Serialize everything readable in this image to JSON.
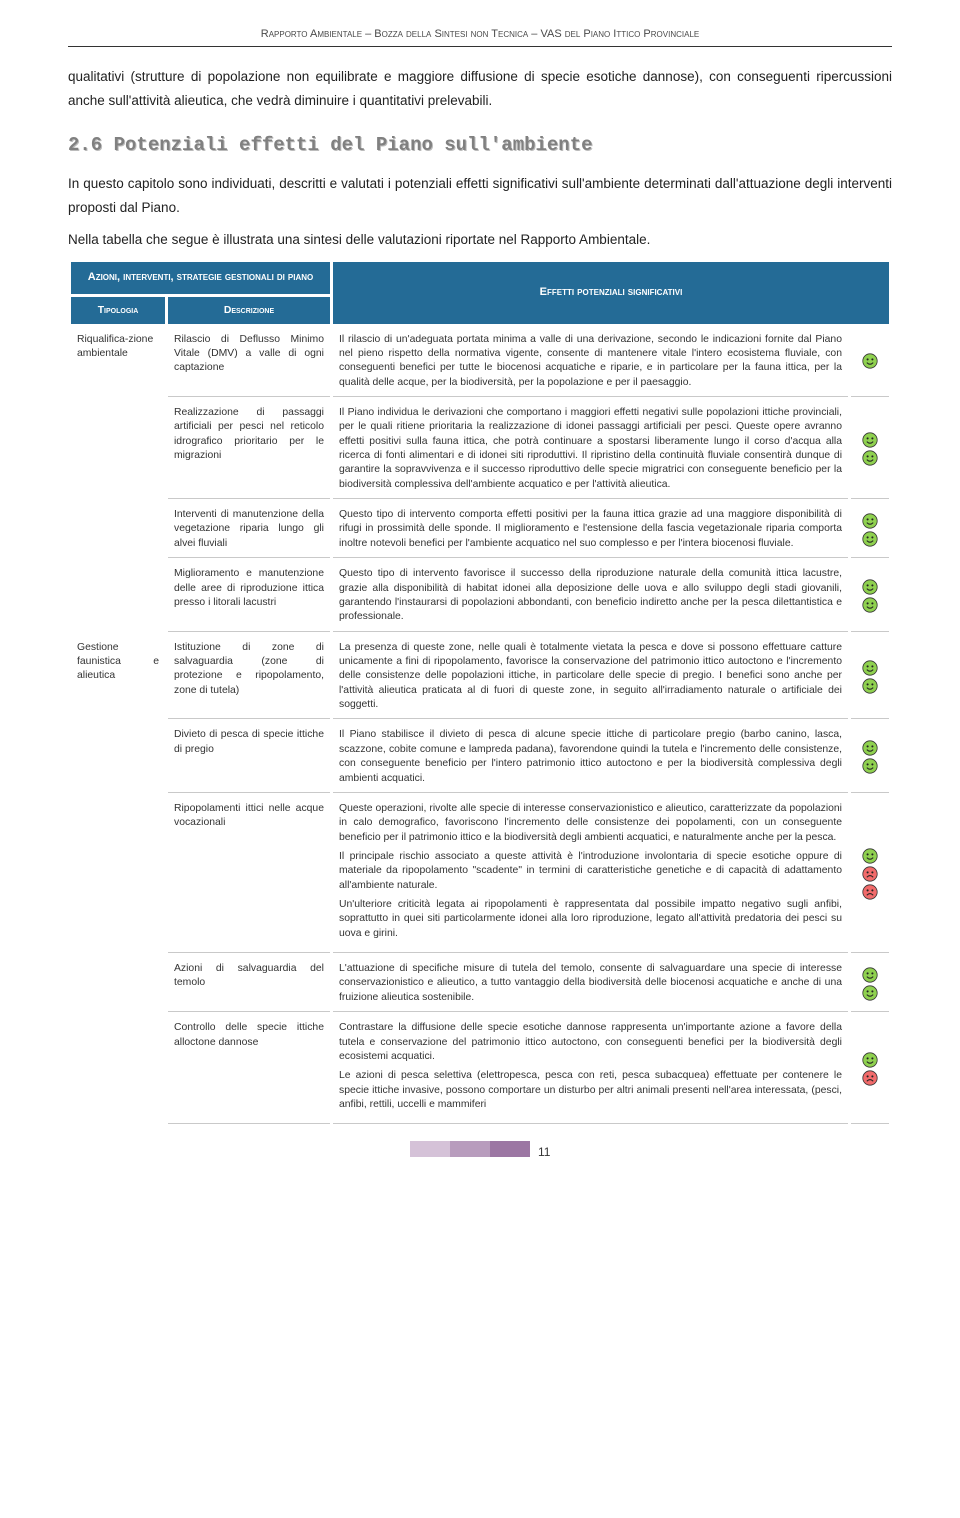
{
  "header": {
    "title_html": "R<span class='header-caps'>apporto</span> A<span class='header-caps'>mbientale</span> – B<span class='header-caps'>ozza della</span> S<span class='header-caps'>intesi non</span> T<span class='header-caps'>ecnica</span> – VAS <span class='header-caps'>del</span> P<span class='header-caps'>iano</span> I<span class='header-caps'>ttico</span> P<span class='header-caps'>rovinciale</span>"
  },
  "intro": "qualitativi (strutture di popolazione non equilibrate e maggiore diffusione di specie esotiche dannose), con conseguenti ripercussioni anche sull'attività alieutica, che vedrà diminuire i quantitativi prelevabili.",
  "section": {
    "number": "2.6",
    "title": "Potenziali effetti del Piano sull'ambiente",
    "para1": "In questo capitolo sono individuati, descritti e valutati i potenziali effetti significativi sull'ambiente determinati dall'attuazione degli interventi proposti dal Piano.",
    "para2": "Nella tabella che segue è illustrata una sintesi delle valutazioni riportate nel Rapporto Ambientale."
  },
  "table": {
    "header_group": "Azioni, interventi, strategie gestionali di piano",
    "header_effects": "Effetti potenziali significativi",
    "col_tipologia": "Tipologia",
    "col_descrizione": "Descrizione",
    "smiley_colors": {
      "green": "#8fd14f",
      "red": "#f26b6b"
    },
    "groups": [
      {
        "tipologia": "Riqualifica-zione ambientale",
        "rows": [
          {
            "descr": "Rilascio di Deflusso Minimo Vitale (DMV) a valle di ogni captazione",
            "effect": "Il rilascio di un'adeguata portata minima a valle di una derivazione, secondo le indicazioni fornite dal Piano nel pieno rispetto della normativa vigente, consente di mantenere vitale l'intero ecosistema fluviale, con conseguenti benefici per tutte le biocenosi acquatiche e riparie, e in particolare per la fauna ittica, per la qualità delle acque, per la biodiversità, per la popolazione e per il paesaggio.",
            "icons": [
              "green"
            ]
          },
          {
            "descr": "Realizzazione di passaggi artificiali per pesci nel reticolo idrografico prioritario per le migrazioni",
            "effect": "Il Piano individua le derivazioni che comportano i maggiori effetti negativi sulle popolazioni ittiche provinciali, per le quali ritiene prioritaria la realizzazione di idonei passaggi artificiali per pesci. Queste opere avranno effetti positivi sulla fauna ittica, che potrà continuare a spostarsi liberamente lungo il corso d'acqua alla ricerca di fonti alimentari e di idonei siti riproduttivi. Il ripristino della continuità fluviale consentirà dunque di garantire la sopravvivenza e il successo riproduttivo delle specie migratrici con conseguente beneficio per la biodiversità complessiva dell'ambiente acquatico e per l'attività alieutica.",
            "icons": [
              "green",
              "green"
            ]
          },
          {
            "descr": "Interventi di manutenzione della vegetazione riparia lungo gli alvei fluviali",
            "effect": "Questo tipo di intervento comporta effetti positivi per la fauna ittica grazie ad una maggiore disponibilità di rifugi in prossimità delle sponde. Il miglioramento e l'estensione della fascia vegetazionale riparia comporta inoltre notevoli benefici per l'ambiente acquatico nel suo complesso e per l'intera biocenosi fluviale.",
            "icons": [
              "green",
              "green"
            ]
          },
          {
            "descr": "Miglioramento e manutenzione delle aree di riproduzione ittica presso i litorali lacustri",
            "effect": "Questo tipo di intervento favorisce il successo della riproduzione naturale della comunità ittica lacustre, grazie alla disponibilità di habitat idonei alla deposizione delle uova e allo sviluppo degli stadi giovanili, garantendo l'instaurarsi di popolazioni abbondanti, con beneficio indiretto anche per la pesca dilettantistica e professionale.",
            "icons": [
              "green",
              "green"
            ]
          }
        ]
      },
      {
        "tipologia": "Gestione faunistica e alieutica",
        "rows": [
          {
            "descr": "Istituzione di zone di salvaguardia (zone di protezione e ripopolamento, zone di tutela)",
            "effect": "La presenza di queste zone, nelle quali è totalmente vietata la pesca e dove si possono effettuare catture unicamente a fini di ripopolamento, favorisce la conservazione del patrimonio ittico autoctono e l'incremento delle consistenze delle popolazioni ittiche, in particolare delle specie di pregio. I benefici sono anche per l'attività alieutica praticata al di fuori di queste zone, in seguito all'irradiamento naturale o artificiale dei soggetti.",
            "icons": [
              "green",
              "green"
            ]
          },
          {
            "descr": "Divieto di pesca di specie ittiche di pregio",
            "effect": "Il Piano stabilisce il divieto di pesca di alcune specie ittiche di particolare pregio (barbo canino, lasca, scazzone, cobite comune e lampreda padana), favorendone quindi la tutela e l'incremento delle consistenze, con conseguente beneficio per l'intero patrimonio ittico autoctono e per la biodiversità complessiva degli ambienti acquatici.",
            "icons": [
              "green",
              "green"
            ]
          },
          {
            "descr": "Ripopolamenti ittici nelle acque vocazionali",
            "effect_multi": [
              "Queste operazioni, rivolte alle specie di interesse conservazionistico e alieutico, caratterizzate da popolazioni in calo demografico, favoriscono l'incremento delle consistenze dei popolamenti, con un conseguente beneficio per il patrimonio ittico e la biodiversità degli ambienti acquatici, e naturalmente anche per la pesca.",
              "Il principale rischio associato a queste attività è l'introduzione involontaria di specie esotiche oppure di materiale da ripopolamento \"scadente\" in termini di caratteristiche genetiche e di capacità di adattamento all'ambiente naturale.",
              "Un'ulteriore criticità legata ai ripopolamenti è rappresentata dal possibile impatto negativo sugli anfibi, soprattutto in quei siti particolarmente idonei alla loro riproduzione, legato all'attività predatoria dei pesci su uova e girini."
            ],
            "icons": [
              "green",
              "red",
              "red"
            ]
          },
          {
            "descr": "Azioni di salvaguardia del temolo",
            "effect": "L'attuazione di specifiche misure di tutela del temolo, consente di salvaguardare una specie di interesse conservazionistico e alieutico, a tutto vantaggio della biodiversità delle biocenosi acquatiche e anche di una fruizione alieutica sostenibile.",
            "icons": [
              "green",
              "green"
            ]
          },
          {
            "descr": "Controllo delle specie ittiche alloctone dannose",
            "effect_multi": [
              "Contrastare la diffusione delle specie esotiche dannose rappresenta un'importante azione a favore della tutela e conservazione del patrimonio ittico autoctono, con conseguenti benefici per la biodiversità degli ecosistemi acquatici.",
              "Le azioni di pesca selettiva (elettropesca, pesca con reti, pesca subacquea) effettuate per contenere le specie ittiche invasive, possono comportare un disturbo per altri animali presenti nell'area interessata, (pesci, anfibi, rettili, uccelli e mammiferi"
            ],
            "icons": [
              "green",
              "red"
            ]
          }
        ]
      }
    ]
  },
  "footer": {
    "bar_colors": [
      "#d5c2d8",
      "#b89cbd",
      "#9c77a3"
    ],
    "page_number": "11"
  }
}
